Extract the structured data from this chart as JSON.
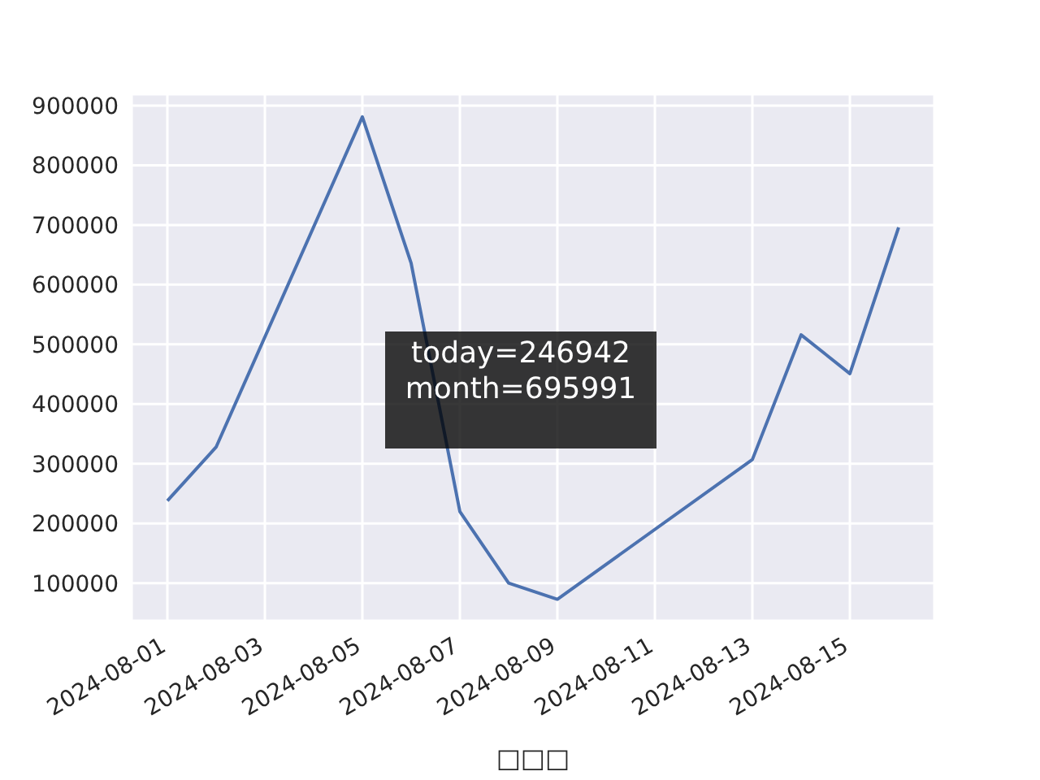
{
  "chart_data": {
    "type": "line",
    "xlabel": "□□□",
    "annotations": [
      "today=246942\nmonth=695991"
    ],
    "x": [
      "2024-08-01",
      "2024-08-02",
      "2024-08-05",
      "2024-08-06",
      "2024-08-07",
      "2024-08-08",
      "2024-08-09",
      "2024-08-13",
      "2024-08-14",
      "2024-08-15",
      "2024-08-16"
    ],
    "series": [
      {
        "color": "#4c72b0",
        "values": [
          238000,
          328000,
          881000,
          636000,
          220000,
          100000,
          73000,
          307000,
          516000,
          451000,
          696000
        ]
      }
    ],
    "xlim": [
      "2024-07-31T06:24",
      "2024-08-16T17:36"
    ],
    "xticks": [
      "2024-08-01",
      "2024-08-03",
      "2024-08-05",
      "2024-08-07",
      "2024-08-09",
      "2024-08-11",
      "2024-08-13",
      "2024-08-15"
    ],
    "ylim": [
      37000,
      919000
    ],
    "yticks": [
      100000,
      200000,
      300000,
      400000,
      500000,
      600000,
      700000,
      800000,
      900000
    ],
    "grid": true,
    "legend": false,
    "marker": "none",
    "line_style": "solid"
  }
}
